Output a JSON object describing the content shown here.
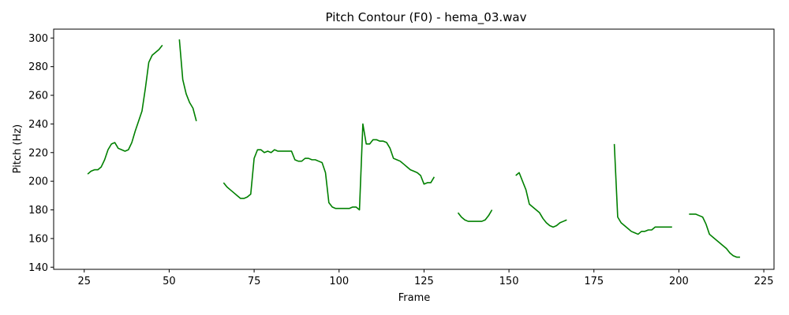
{
  "chart_data": {
    "type": "line",
    "title": "Pitch Contour (F0) - hema_03.wav",
    "xlabel": "Frame",
    "ylabel": "Pitch (Hz)",
    "xlim": [
      16,
      228
    ],
    "ylim": [
      138.5,
      306.2
    ],
    "xticks": [
      25,
      50,
      75,
      100,
      125,
      150,
      175,
      200,
      225
    ],
    "yticks": [
      140,
      160,
      180,
      200,
      220,
      240,
      260,
      280,
      300
    ],
    "grid": false,
    "legend": "none",
    "color": "#008000",
    "series": [
      {
        "x": [
          26,
          27,
          28,
          29,
          30,
          31,
          32,
          33,
          34,
          35,
          36,
          37,
          38,
          39,
          40,
          41,
          42,
          43,
          44,
          45,
          46,
          47,
          48
        ],
        "values": [
          205,
          207,
          208,
          208,
          210,
          215,
          222,
          226,
          227,
          223,
          222,
          221,
          222,
          227,
          235,
          242,
          249,
          265,
          283,
          288,
          290,
          292,
          295
        ]
      },
      {
        "x": [
          53,
          54,
          55,
          56,
          57,
          58
        ],
        "values": [
          299,
          271,
          261,
          255,
          251,
          242
        ]
      },
      {
        "x": [
          66,
          67,
          68,
          69,
          70,
          71,
          72,
          73,
          74,
          75,
          76,
          77,
          78,
          79,
          80,
          81,
          82,
          83,
          84,
          85,
          86,
          87,
          88,
          89,
          90,
          91,
          92,
          93,
          94,
          95,
          96,
          97,
          98,
          99,
          100,
          101,
          102,
          103,
          104,
          105,
          106,
          107,
          108,
          109,
          110,
          111,
          112,
          113,
          114,
          115,
          116,
          117,
          118,
          119,
          120,
          121,
          122,
          123,
          124,
          125,
          126,
          127,
          128
        ],
        "values": [
          199,
          196,
          194,
          192,
          190,
          188,
          188,
          189,
          191,
          216,
          222,
          222,
          220,
          221,
          220,
          222,
          221,
          221,
          221,
          221,
          221,
          215,
          214,
          214,
          216,
          216,
          215,
          215,
          214,
          213,
          206,
          185,
          182,
          181,
          181,
          181,
          181,
          181,
          182,
          182,
          180,
          240,
          226,
          226,
          229,
          229,
          228,
          228,
          227,
          223,
          216,
          215,
          214,
          212,
          210,
          208,
          207,
          206,
          204,
          198,
          199,
          199,
          203
        ]
      },
      {
        "x": [
          135,
          136,
          137,
          138,
          139,
          140,
          141,
          142,
          143,
          144,
          145
        ],
        "values": [
          178,
          175,
          173,
          172,
          172,
          172,
          172,
          172,
          173,
          176,
          180
        ]
      },
      {
        "x": [
          152,
          153,
          154,
          155,
          156,
          157,
          158,
          159,
          160,
          161,
          162,
          163,
          164,
          165,
          166,
          167
        ],
        "values": [
          204,
          206,
          200,
          194,
          184,
          182,
          180,
          178,
          174,
          171,
          169,
          168,
          169,
          171,
          172,
          173
        ]
      },
      {
        "x": [
          181,
          182,
          183,
          184,
          185,
          186,
          187,
          188,
          189,
          190,
          191,
          192,
          193,
          194,
          195,
          196,
          197,
          198
        ],
        "values": [
          226,
          175,
          171,
          169,
          167,
          165,
          164,
          163,
          165,
          165,
          166,
          166,
          168,
          168,
          168,
          168,
          168,
          168
        ]
      },
      {
        "x": [
          203,
          204,
          205,
          206,
          207,
          208,
          209,
          210,
          211,
          212,
          213,
          214,
          215,
          216,
          217,
          218
        ],
        "values": [
          177,
          177,
          177,
          176,
          175,
          170,
          163,
          161,
          159,
          157,
          155,
          153,
          150,
          148,
          147,
          147
        ]
      }
    ]
  }
}
